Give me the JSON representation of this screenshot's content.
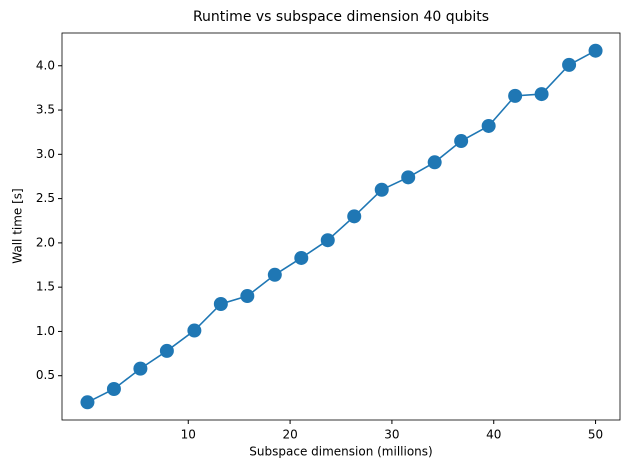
{
  "chart_data": {
    "type": "line",
    "title": "Runtime vs subspace dimension 40 qubits",
    "x_label": "Subspace dimension (millions)",
    "y_label": "Wall time [s]",
    "x": [
      0.1,
      2.7,
      5.3,
      7.9,
      10.6,
      13.2,
      15.8,
      18.5,
      21.1,
      23.7,
      26.3,
      29.0,
      31.6,
      34.2,
      36.8,
      39.5,
      42.1,
      44.7,
      47.4,
      50.0
    ],
    "series": [
      {
        "name": "Wall time",
        "color": "#1f77b4",
        "values": [
          0.2,
          0.35,
          0.58,
          0.78,
          1.01,
          1.31,
          1.4,
          1.64,
          1.83,
          2.03,
          2.3,
          2.6,
          2.74,
          2.91,
          3.15,
          3.32,
          3.66,
          3.68,
          4.01,
          4.17
        ]
      }
    ],
    "xlim": [
      -2.4,
      52.4
    ],
    "ylim": [
      0.0,
      4.37
    ],
    "xticks": [
      10,
      20,
      30,
      40,
      50
    ],
    "yticks": [
      {
        "value": 0.5,
        "label": "0.5"
      },
      {
        "value": 1.0,
        "label": "1.0"
      },
      {
        "value": 1.5,
        "label": "1.5"
      },
      {
        "value": 2.0,
        "label": "2.0"
      },
      {
        "value": 2.5,
        "label": "2.5"
      },
      {
        "value": 3.0,
        "label": "3.0"
      },
      {
        "value": 3.5,
        "label": "3.5"
      },
      {
        "value": 4.0,
        "label": "4.0"
      }
    ],
    "grid": false
  }
}
